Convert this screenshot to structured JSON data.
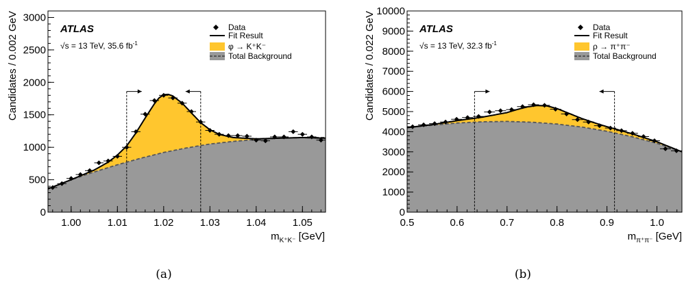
{
  "figure": {
    "captions": [
      "(a)",
      "(b)"
    ],
    "colors": {
      "signal": "#FFC62E",
      "background": "#999999",
      "fit": "#000000",
      "bkg_line": "#555555"
    }
  },
  "chart_data": [
    {
      "type": "line",
      "panel": "(a)",
      "experiment": "ATLAS",
      "energy_label": "√s = 13 TeV, 35.6 fb",
      "lumi_sup": "-1",
      "xlabel_base": "m",
      "xlabel_sub": "K⁺K⁻",
      "xlabel_unit": " [GeV]",
      "ylabel": "Candidates / 0.002 GeV",
      "xlim": [
        0.995,
        1.055
      ],
      "ylim": [
        0,
        3100
      ],
      "xticks": [
        1.0,
        1.01,
        1.02,
        1.03,
        1.04,
        1.05
      ],
      "xtick_labels": [
        "1.00",
        "1.01",
        "1.02",
        "1.03",
        "1.04",
        "1.05"
      ],
      "yticks": [
        0,
        500,
        1000,
        1500,
        2000,
        2500,
        3000
      ],
      "ytick_labels": [
        "0",
        "500",
        "1000",
        "1500",
        "2000",
        "2500",
        "3000"
      ],
      "legend": [
        "Data",
        "Fit Result",
        "φ → K⁺K⁻",
        "Total Background"
      ],
      "signal_window": [
        1.012,
        1.028
      ],
      "data": {
        "x": [
          0.996,
          0.998,
          1.0,
          1.002,
          1.004,
          1.006,
          1.008,
          1.01,
          1.012,
          1.014,
          1.016,
          1.018,
          1.02,
          1.022,
          1.024,
          1.026,
          1.028,
          1.03,
          1.032,
          1.034,
          1.036,
          1.038,
          1.04,
          1.042,
          1.044,
          1.046,
          1.048,
          1.05,
          1.052,
          1.054
        ],
        "y": [
          380,
          440,
          520,
          580,
          640,
          760,
          790,
          860,
          1000,
          1240,
          1510,
          1720,
          1800,
          1760,
          1680,
          1550,
          1390,
          1260,
          1200,
          1180,
          1180,
          1170,
          1110,
          1100,
          1160,
          1160,
          1240,
          1200,
          1160,
          1110
        ]
      },
      "fit": {
        "x": [
          0.995,
          1.0,
          1.005,
          1.008,
          1.01,
          1.012,
          1.014,
          1.016,
          1.018,
          1.019,
          1.02,
          1.021,
          1.022,
          1.024,
          1.026,
          1.028,
          1.03,
          1.032,
          1.035,
          1.04,
          1.045,
          1.05,
          1.055
        ],
        "y": [
          360,
          500,
          650,
          770,
          880,
          1020,
          1220,
          1450,
          1670,
          1760,
          1810,
          1815,
          1790,
          1680,
          1530,
          1380,
          1270,
          1200,
          1150,
          1130,
          1140,
          1150,
          1140
        ]
      },
      "background": {
        "x": [
          0.995,
          1.0,
          1.005,
          1.01,
          1.015,
          1.02,
          1.025,
          1.03,
          1.035,
          1.04,
          1.045,
          1.05,
          1.055
        ],
        "y": [
          360,
          500,
          620,
          730,
          830,
          920,
          990,
          1050,
          1090,
          1120,
          1140,
          1150,
          1150
        ]
      }
    },
    {
      "type": "line",
      "panel": "(b)",
      "experiment": "ATLAS",
      "energy_label": "√s = 13 TeV, 32.3 fb",
      "lumi_sup": "-1",
      "xlabel_base": "m",
      "xlabel_sub": "π⁺π⁻",
      "xlabel_unit": " [GeV]",
      "ylabel": "Candidates / 0.022 GeV",
      "xlim": [
        0.5,
        1.05
      ],
      "ylim": [
        0,
        10000
      ],
      "xticks": [
        0.5,
        0.6,
        0.7,
        0.8,
        0.9,
        1.0
      ],
      "xtick_labels": [
        "0.5",
        "0.6",
        "0.7",
        "0.8",
        "0.9",
        "1.0"
      ],
      "yticks": [
        0,
        1000,
        2000,
        3000,
        4000,
        5000,
        6000,
        7000,
        8000,
        9000,
        10000
      ],
      "ytick_labels": [
        "0",
        "1000",
        "2000",
        "3000",
        "4000",
        "5000",
        "6000",
        "7000",
        "8000",
        "9000",
        "10000"
      ],
      "legend": [
        "Data",
        "Fit Result",
        "ρ → π⁺π⁻",
        "Total Background"
      ],
      "signal_window": [
        0.635,
        0.915
      ],
      "data": {
        "x": [
          0.511,
          0.533,
          0.555,
          0.577,
          0.599,
          0.621,
          0.643,
          0.665,
          0.687,
          0.709,
          0.731,
          0.753,
          0.775,
          0.797,
          0.819,
          0.841,
          0.863,
          0.885,
          0.907,
          0.929,
          0.951,
          0.973,
          0.995,
          1.017,
          1.039
        ],
        "y": [
          4250,
          4340,
          4400,
          4480,
          4620,
          4700,
          4760,
          4980,
          5040,
          5100,
          5250,
          5340,
          5310,
          5120,
          4880,
          4600,
          4480,
          4300,
          4180,
          4050,
          3920,
          3760,
          3550,
          3150,
          3050
        ]
      },
      "fit": {
        "x": [
          0.5,
          0.55,
          0.6,
          0.65,
          0.7,
          0.72,
          0.74,
          0.76,
          0.78,
          0.8,
          0.82,
          0.85,
          0.88,
          0.9,
          0.95,
          1.0,
          1.05
        ],
        "y": [
          4200,
          4350,
          4550,
          4720,
          4950,
          5100,
          5230,
          5300,
          5280,
          5150,
          4950,
          4650,
          4400,
          4250,
          3900,
          3500,
          3000
        ]
      },
      "background": {
        "x": [
          0.5,
          0.55,
          0.6,
          0.65,
          0.7,
          0.75,
          0.8,
          0.85,
          0.9,
          0.95,
          1.0,
          1.05
        ],
        "y": [
          4200,
          4320,
          4430,
          4490,
          4510,
          4470,
          4380,
          4230,
          4020,
          3750,
          3420,
          3000
        ]
      }
    }
  ]
}
